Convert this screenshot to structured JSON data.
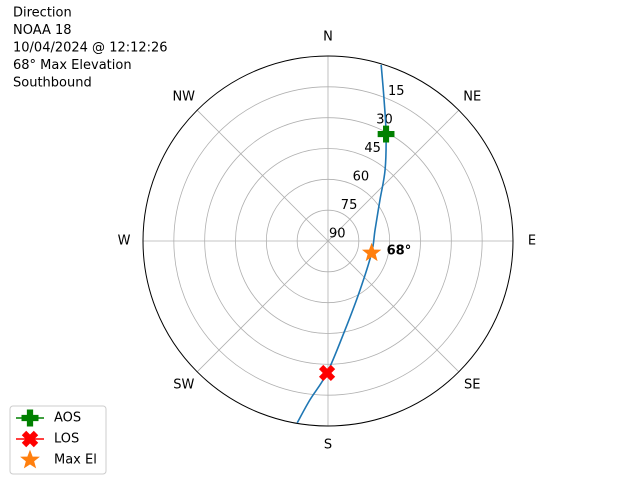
{
  "chart_data": {
    "type": "polar",
    "title": [
      "Direction",
      "NOAA 18",
      "10/04/2024 @ 12:12:26",
      "68° Max Elevation",
      "Southbound"
    ],
    "theta_direction": "clockwise",
    "theta_zero": "N",
    "thetaticks": [
      {
        "value": 0,
        "label": "N"
      },
      {
        "value": 45,
        "label": "NE"
      },
      {
        "value": 90,
        "label": "E"
      },
      {
        "value": 135,
        "label": "SE"
      },
      {
        "value": 180,
        "label": "S"
      },
      {
        "value": 225,
        "label": "SW"
      },
      {
        "value": 270,
        "label": "W"
      },
      {
        "value": 315,
        "label": "NW"
      }
    ],
    "rlim": [
      90,
      0
    ],
    "rticks": [
      15,
      30,
      45,
      60,
      75,
      90
    ],
    "rtick_angle": 22.5,
    "grid": true,
    "legend": "lower left",
    "series": [
      {
        "color": "#1f77b4",
        "marker": "none",
        "theta": [
          16.8,
          21.7,
          28.5,
          38.8,
          51.7,
          76.8,
          105.3,
          146.9,
          169.2,
          180.4,
          186.5,
          189.6
        ],
        "values": [
          0.5,
          16.2,
          30.8,
          45.7,
          57.8,
          66.5,
          68,
          61.5,
          45.9,
          25.8,
          12.2,
          0.3
        ]
      },
      {
        "name": "AOS",
        "color": "green",
        "marker": "plus",
        "theta": [
          28.5
        ],
        "values": [
          30.8
        ]
      },
      {
        "name": "LOS",
        "color": "red",
        "marker": "x",
        "theta": [
          180.4
        ],
        "values": [
          25.8
        ]
      },
      {
        "name": "Max El",
        "color": "#ff7f0e",
        "marker": "star",
        "theta": [
          105.3
        ],
        "values": [
          68
        ]
      }
    ],
    "annotation": "68°"
  }
}
